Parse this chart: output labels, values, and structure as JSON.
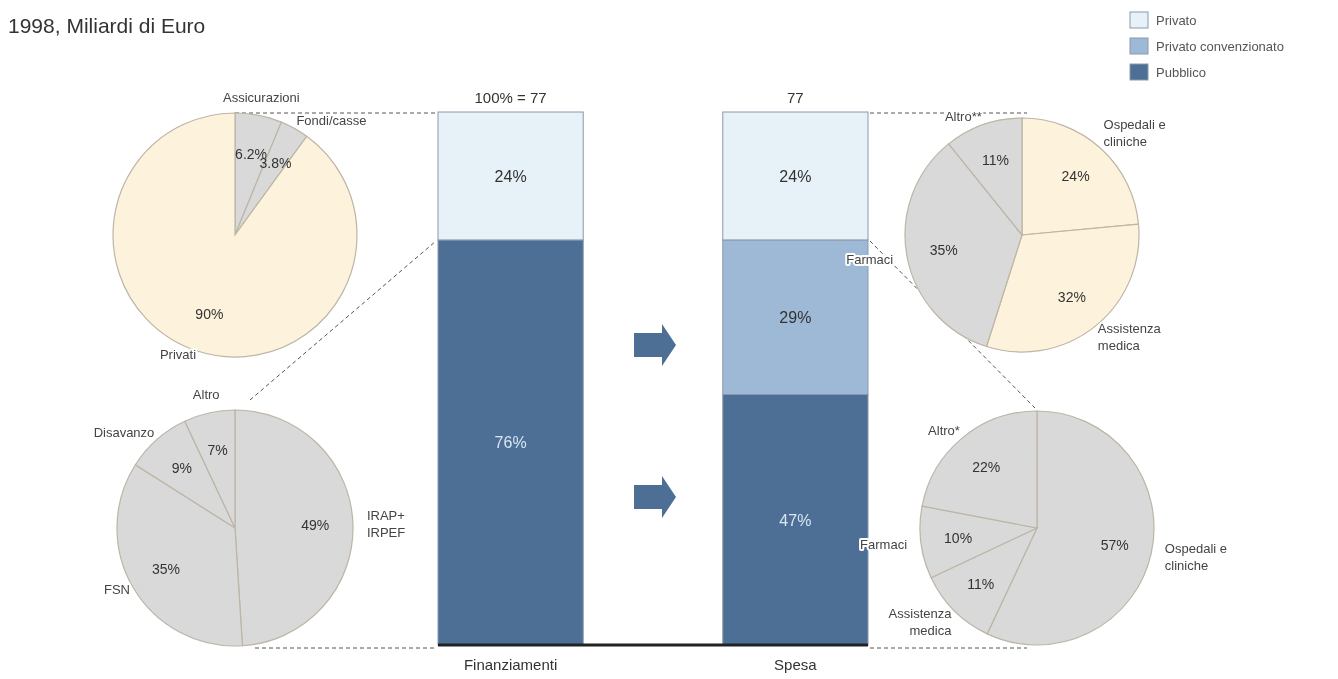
{
  "chart_data": [
    {
      "type": "other",
      "title": "1998, Miliardi di Euro"
    },
    {
      "type": "bar",
      "categories": [
        "Finanziamenti",
        "Spesa"
      ],
      "stacked": true,
      "ylim": [
        0,
        100
      ],
      "tick_labels": "x",
      "legend": "top right",
      "series": [
        {
          "name": "Pubblico",
          "color": "#4d6f96",
          "values": [
            76,
            47
          ],
          "value_labels": [
            "76%",
            "47%"
          ]
        },
        {
          "name": "Privato convenzionato",
          "color": "#9db9d6",
          "values": [
            null,
            29
          ],
          "value_labels": [
            null,
            "29%"
          ]
        },
        {
          "name": "Privato",
          "color": "#e6f1f8",
          "values": [
            24,
            24
          ],
          "value_labels": [
            "24%",
            "24%"
          ]
        }
      ],
      "annotations": [
        "100% = 77",
        "77"
      ]
    },
    {
      "type": "pie",
      "categories": [
        "Assicurazioni",
        "Fondi/casse",
        "Privati"
      ],
      "values": [
        6.2,
        3.8,
        90
      ],
      "colors": [
        "#d9d9d9",
        "#d9d9d9",
        "#fdf3dc"
      ],
      "value_labels": [
        "6.2%",
        "3.8%",
        "90%"
      ]
    },
    {
      "type": "pie",
      "categories": [
        "IRAP+ IRPEF",
        "FSN",
        "Disavanzo",
        "Altro"
      ],
      "values": [
        49,
        35,
        9,
        7
      ],
      "colors": [
        "#d9d9d9",
        "#d9d9d9",
        "#d9d9d9",
        "#d9d9d9"
      ],
      "value_labels": [
        "49%",
        "35%",
        "9%",
        "7%"
      ]
    },
    {
      "type": "pie",
      "categories": [
        "Ospedali e cliniche",
        "Assistenza medica",
        "Farmaci",
        "Altro**"
      ],
      "values": [
        24,
        32,
        35,
        11
      ],
      "colors": [
        "#fdf3dc",
        "#fdf3dc",
        "#d9d9d9",
        "#d9d9d9"
      ],
      "value_labels": [
        "24%",
        "32%",
        "35%",
        "11%"
      ]
    },
    {
      "type": "pie",
      "categories": [
        "Ospedali e cliniche",
        "Assistenza medica",
        "Farmaci",
        "Altro*"
      ],
      "values": [
        57,
        11,
        10,
        22
      ],
      "colors": [
        "#d9d9d9",
        "#d9d9d9",
        "#d9d9d9",
        "#d9d9d9"
      ],
      "value_labels": [
        "57%",
        "11%",
        "10%",
        "22%"
      ]
    }
  ]
}
